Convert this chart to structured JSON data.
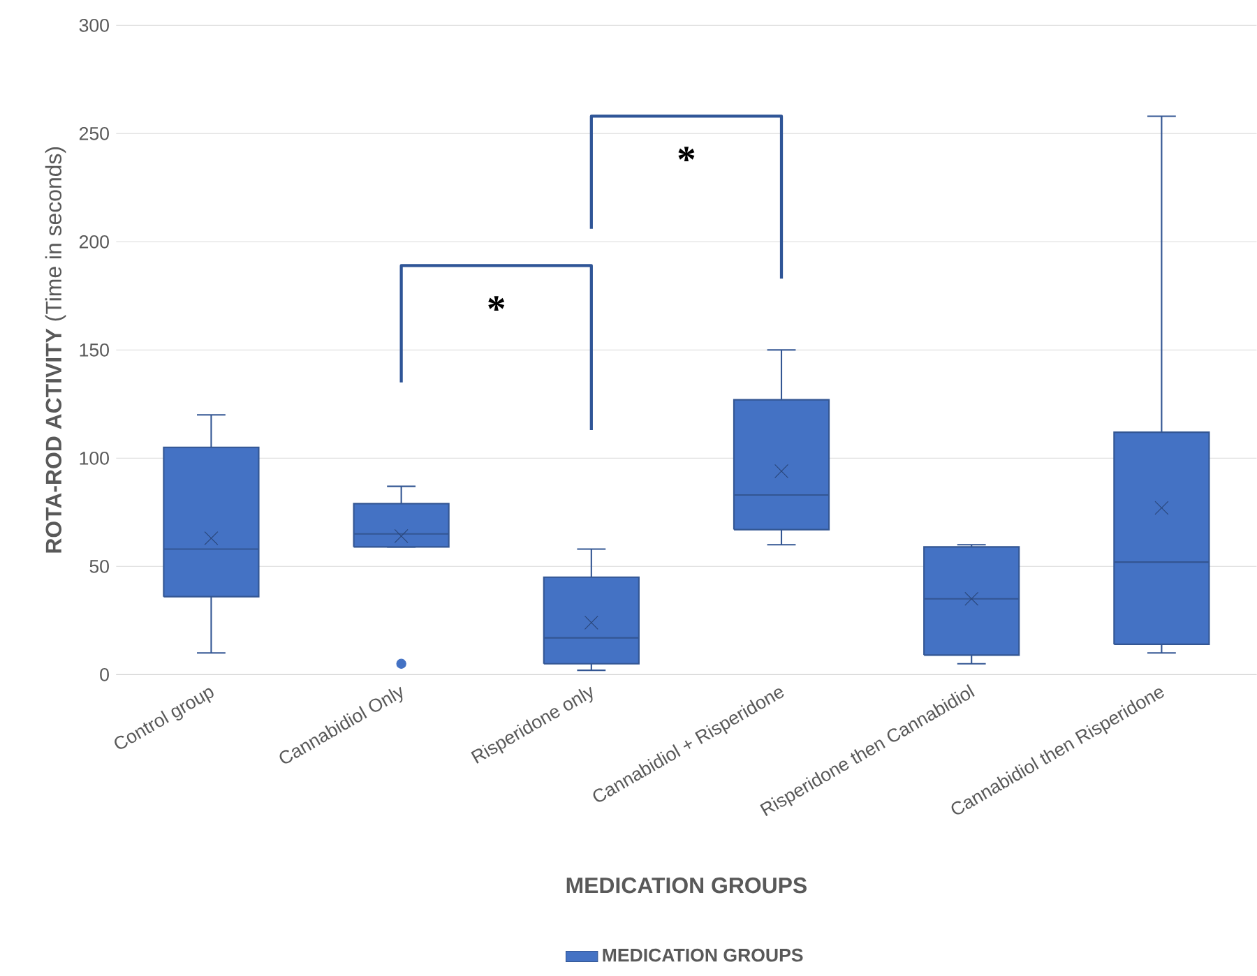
{
  "chart_data": {
    "type": "box",
    "xlabel": "MEDICATION GROUPS",
    "ylabel": "**ROTA-ROD ACTIVITY** (Time in seconds)",
    "categories": [
      "Control group",
      "Cannabidiol Only",
      "Risperidone only",
      "Cannabidiol + Risperidone",
      "Risperidone then Cannabidiol",
      "Cannabidiol then Risperidone"
    ],
    "series": [
      {
        "name": "MEDICATION GROUPS",
        "color": "#4472c4",
        "boxes": [
          {
            "low": 10,
            "q1": 36,
            "median": 58,
            "q3": 105,
            "high": 120,
            "mean": 63
          },
          {
            "low": 59,
            "q1": 59,
            "median": 65,
            "q3": 79,
            "high": 87,
            "mean": 64,
            "outliers": [
              5
            ]
          },
          {
            "low": 2,
            "q1": 5,
            "median": 17,
            "q3": 45,
            "high": 58,
            "mean": 24
          },
          {
            "low": 60,
            "q1": 67,
            "median": 83,
            "q3": 127,
            "high": 150,
            "mean": 94
          },
          {
            "low": 5,
            "q1": 9,
            "median": 35,
            "q3": 59,
            "high": 60,
            "mean": 35
          },
          {
            "low": 10,
            "q1": 14,
            "median": 52,
            "q3": 112,
            "high": 258,
            "mean": 77
          }
        ]
      }
    ],
    "ylim": [
      0,
      300
    ],
    "yticks": [
      0,
      50,
      100,
      150,
      200,
      250,
      300
    ],
    "grid": "y",
    "legend": "bottom",
    "annotations": [
      "*",
      "*"
    ]
  }
}
